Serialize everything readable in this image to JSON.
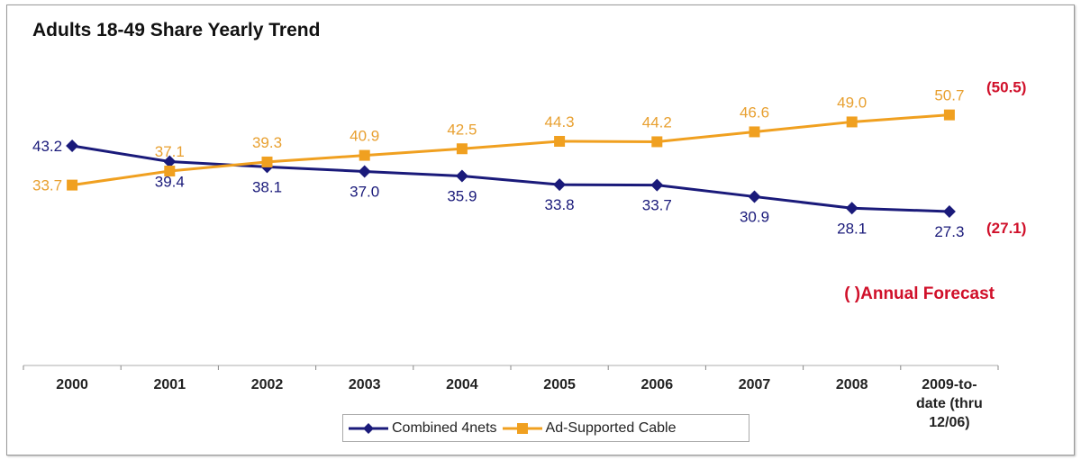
{
  "chart_data": {
    "type": "line",
    "title": "Adults 18-49 Share Yearly Trend",
    "categories": [
      "2000",
      "2001",
      "2002",
      "2003",
      "2004",
      "2005",
      "2006",
      "2007",
      "2008",
      "2009-to- date (thru 12/06)"
    ],
    "series": [
      {
        "name": "Combined 4nets",
        "color": "#1a1a7a",
        "marker": "diamond",
        "values": [
          43.2,
          39.4,
          38.1,
          37.0,
          35.9,
          33.8,
          33.7,
          30.9,
          28.1,
          27.3
        ],
        "forecast": "(27.1)"
      },
      {
        "name": "Ad-Supported Cable",
        "color": "#f0a020",
        "marker": "square",
        "values": [
          33.7,
          37.1,
          39.3,
          40.9,
          42.5,
          44.3,
          44.2,
          46.6,
          49.0,
          50.7
        ],
        "forecast": "(50.5)"
      }
    ],
    "forecast_color": "#d0102a",
    "annotation": "( )Annual Forecast",
    "ylim": [
      -10,
      60
    ],
    "grid": false,
    "legend": "bottom"
  }
}
